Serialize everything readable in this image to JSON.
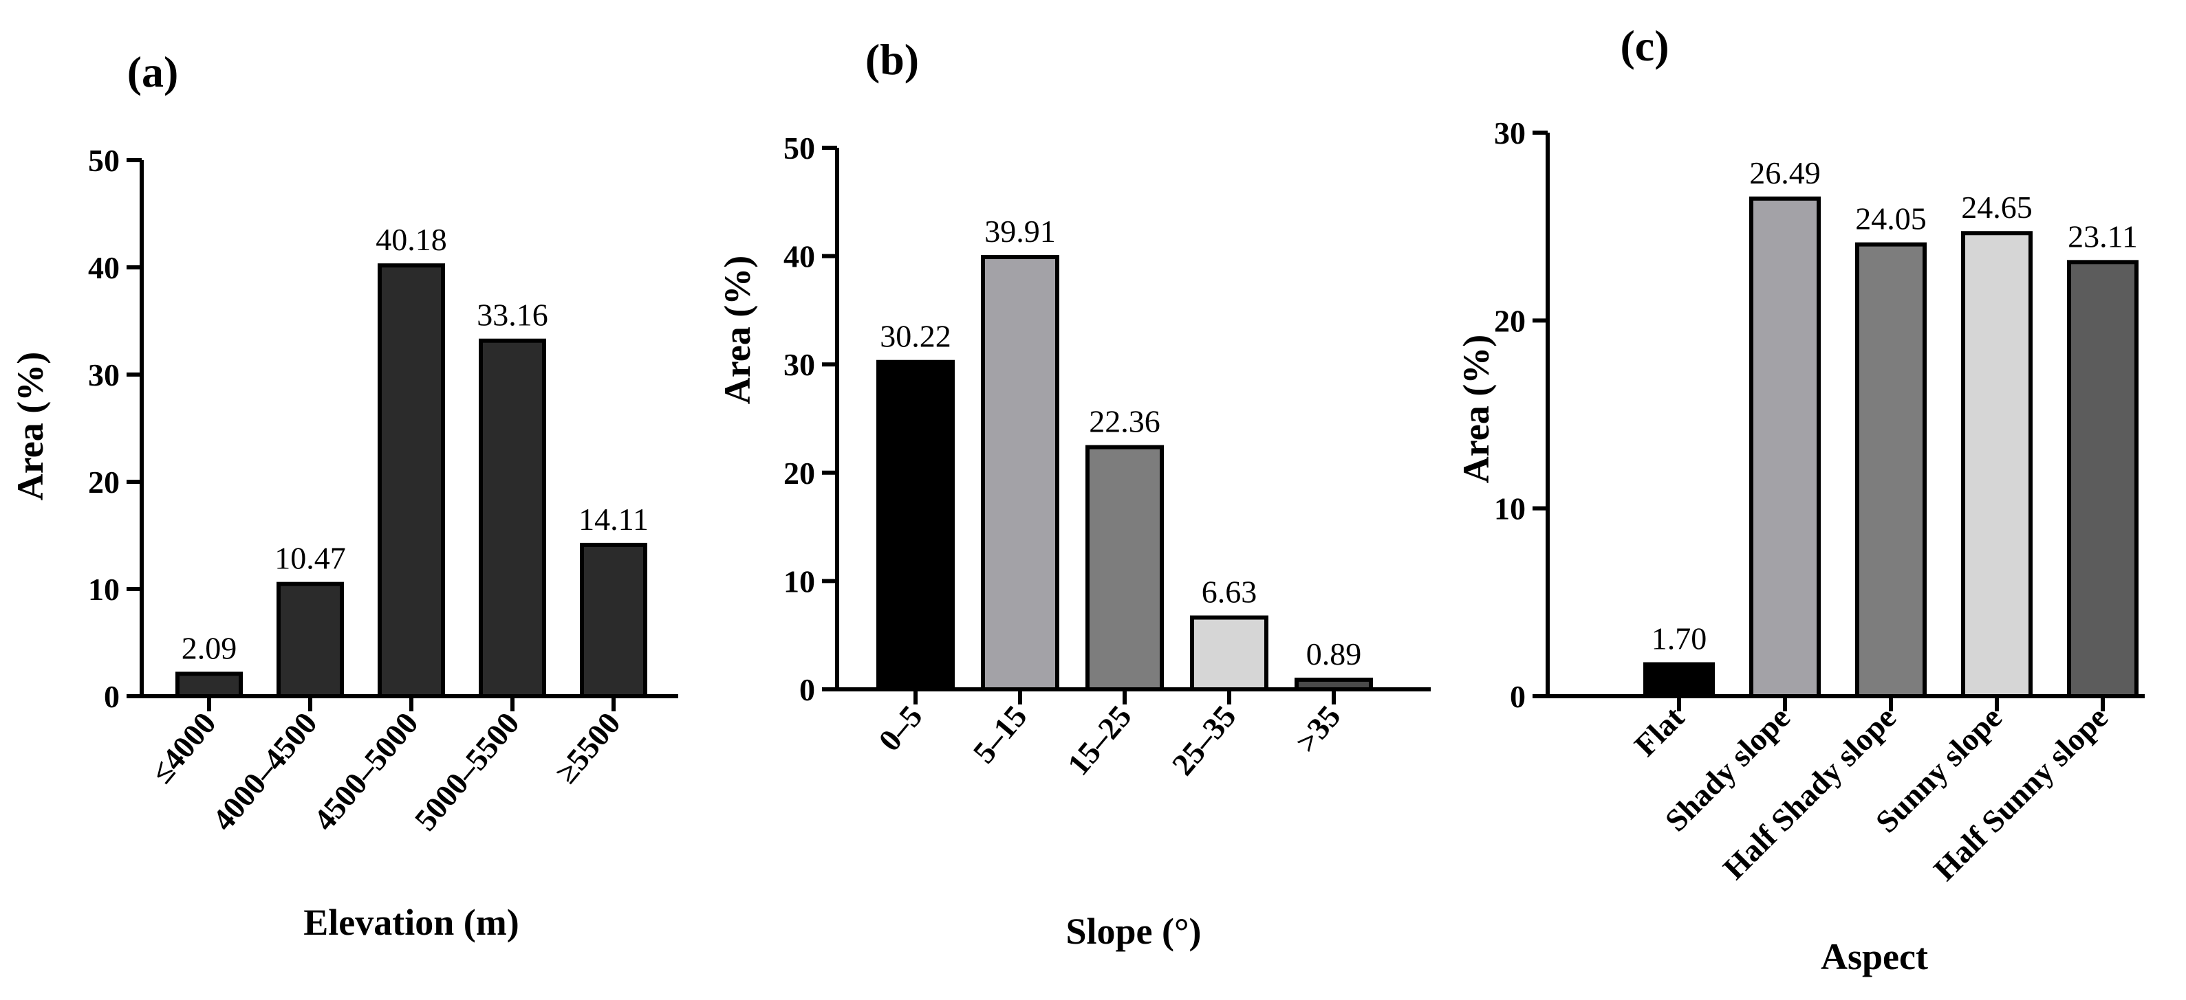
{
  "chart_data": [
    {
      "type": "bar",
      "panel_label": "(a)",
      "categories": [
        "≤4000",
        "4000–4500",
        "4500–5000",
        "5000–5500",
        "≥5500"
      ],
      "values": [
        2.09,
        10.47,
        40.18,
        33.16,
        14.11
      ],
      "value_labels": [
        "2.09",
        "10.47",
        "40.18",
        "33.16",
        "14.11"
      ],
      "colors": [
        "#2b2b2b",
        "#2b2b2b",
        "#2b2b2b",
        "#2b2b2b",
        "#2b2b2b"
      ],
      "xlabel": "Elevation (m)",
      "ylabel": "Area (%)",
      "ylim": [
        0,
        50
      ],
      "yticks": [
        "0",
        "10",
        "20",
        "30",
        "40",
        "50"
      ]
    },
    {
      "type": "bar",
      "panel_label": "(b)",
      "categories": [
        "0–5",
        "5–15",
        "15–25",
        "25–35",
        ">35"
      ],
      "values": [
        30.22,
        39.91,
        22.36,
        6.63,
        0.89
      ],
      "value_labels": [
        "30.22",
        "39.91",
        "22.36",
        "6.63",
        "0.89"
      ],
      "colors": [
        "#000000",
        "#a3a2a7",
        "#7d7d7d",
        "#d6d6d6",
        "#4a4a4a"
      ],
      "xlabel": "Slope (°)",
      "ylabel": "Area (%)",
      "ylim": [
        0,
        50
      ],
      "yticks": [
        "0",
        "10",
        "20",
        "30",
        "40",
        "50"
      ]
    },
    {
      "type": "bar",
      "panel_label": "(c)",
      "categories": [
        "Flat",
        "Shady slope",
        "Half Shady slope",
        "Sunny slope",
        "Half Sunny slope"
      ],
      "values": [
        1.7,
        26.49,
        24.05,
        24.65,
        23.11
      ],
      "value_labels": [
        "1.70",
        "26.49",
        "24.05",
        "24.65",
        "23.11"
      ],
      "colors": [
        "#000000",
        "#a3a2a7",
        "#7d7d7d",
        "#d6d6d6",
        "#5c5c5c"
      ],
      "xlabel": "Aspect",
      "ylabel": "Area (%)",
      "ylim": [
        0,
        30
      ],
      "yticks": [
        "0",
        "10",
        "20",
        "30"
      ]
    }
  ]
}
